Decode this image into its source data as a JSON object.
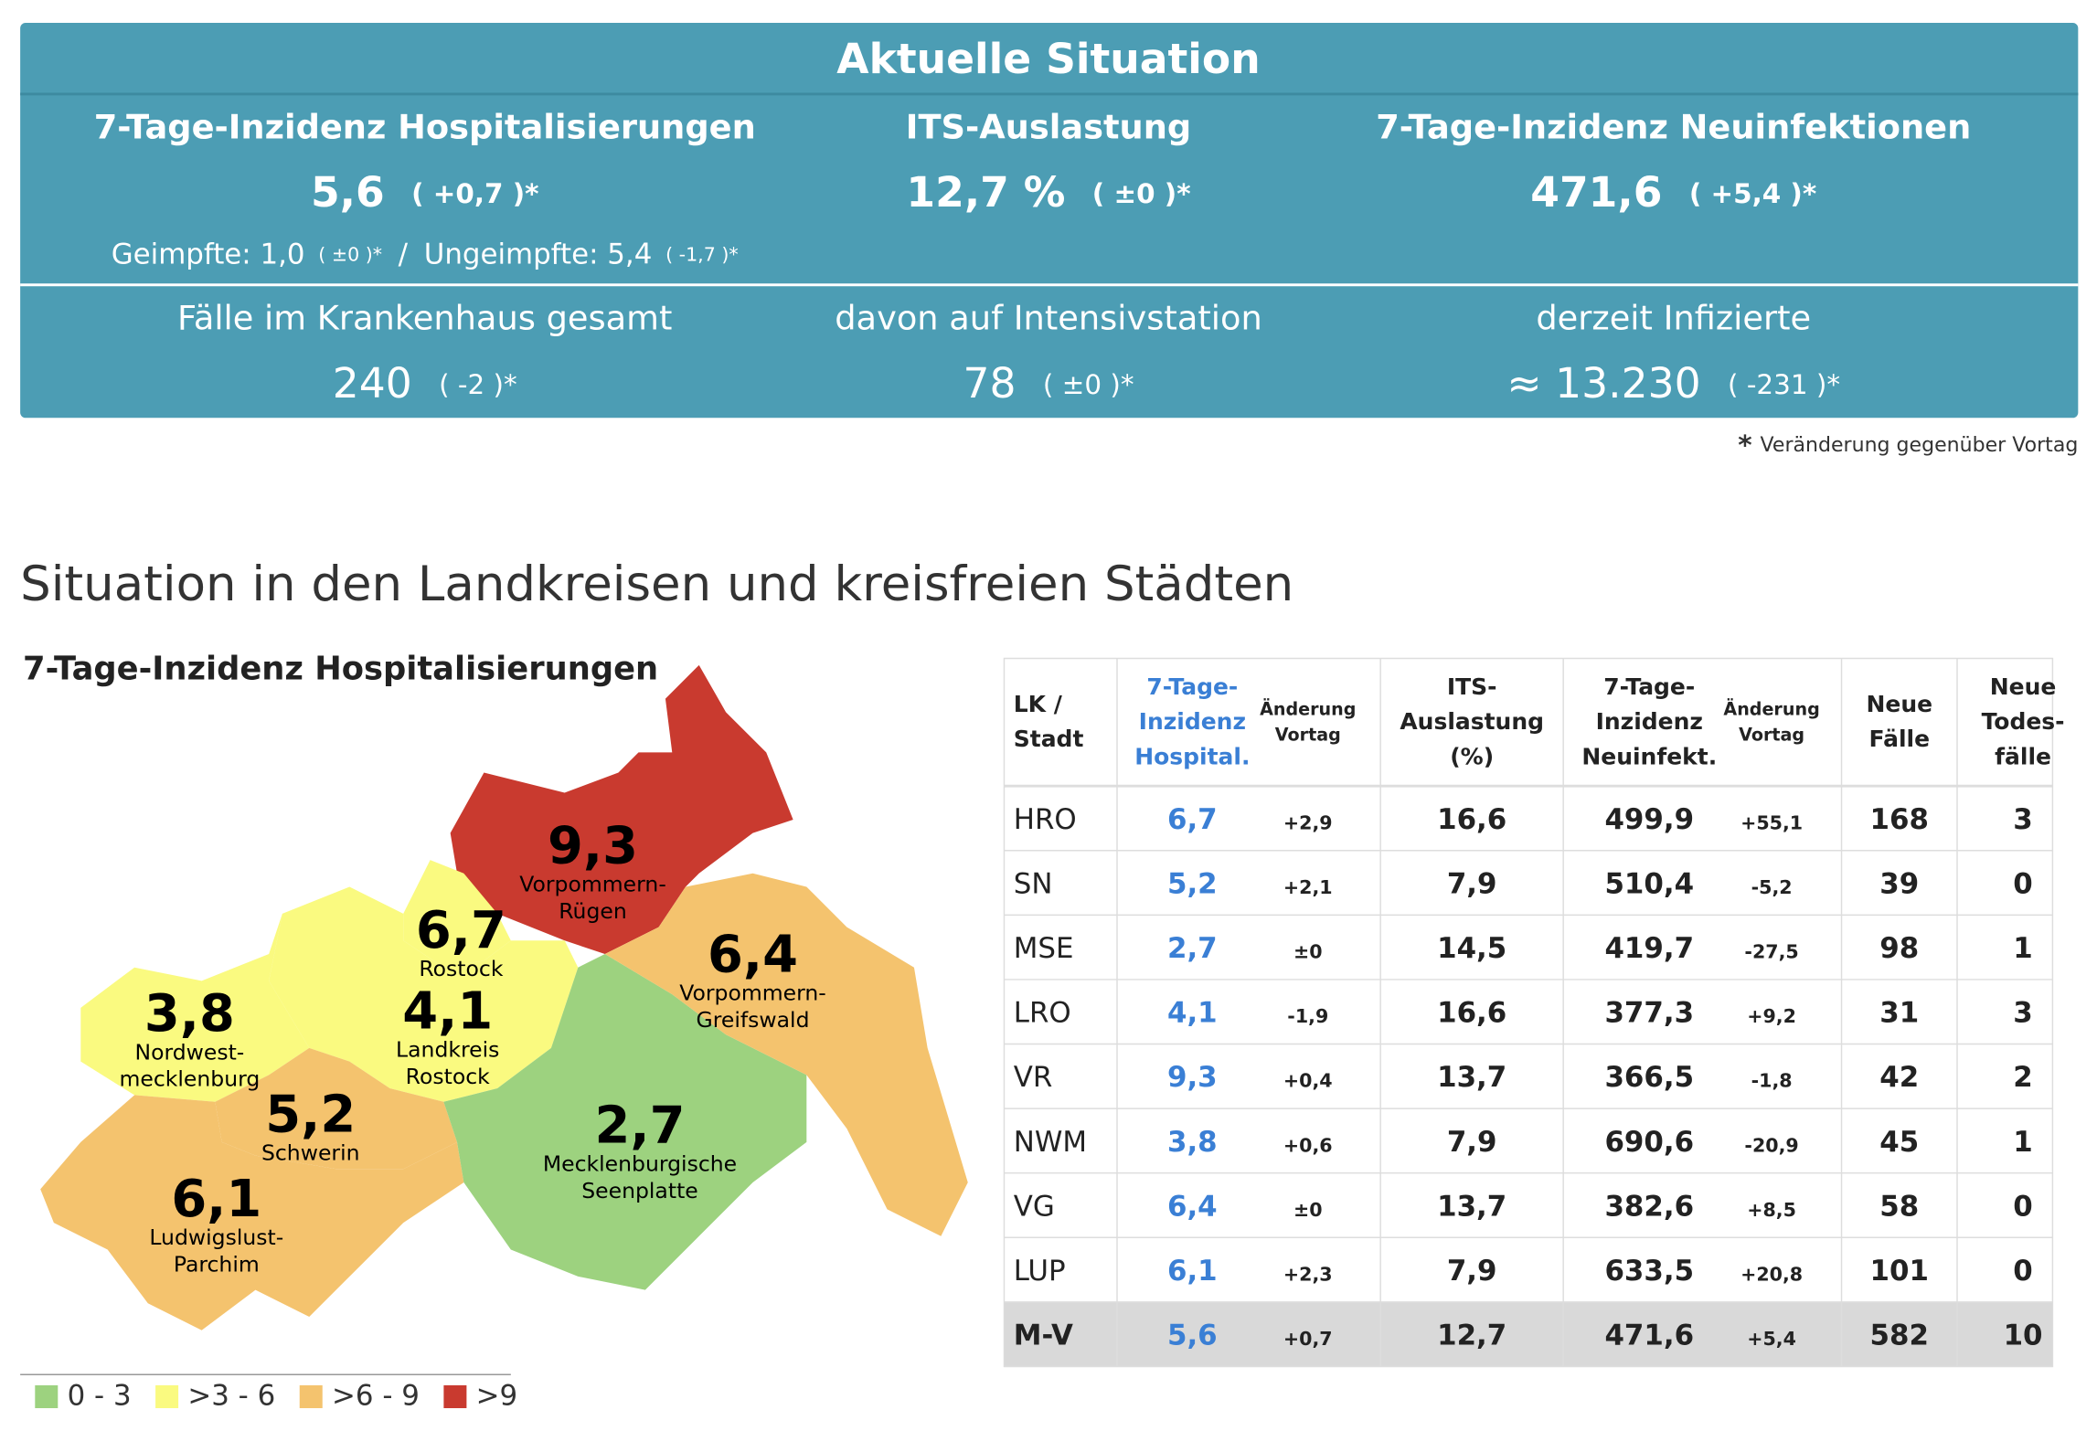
{
  "summary": {
    "title": "Aktuelle Situation",
    "kpis": [
      {
        "label": "7-Tage-Inzidenz Hospitalisierungen",
        "value": "5,6",
        "change": "( +0,7 )*"
      },
      {
        "label": "ITS-Auslastung",
        "value": "12,7 %",
        "change": "( ±0 )*"
      },
      {
        "label": "7-Tage-Inzidenz Neuinfektionen",
        "value": "471,6",
        "change": "( +5,4 )*"
      }
    ],
    "split": {
      "vaccinated": "Geimpfte: 1,0",
      "vaccinated_change": "( ±0 )*",
      "separator": "/",
      "unvaccinated": "Ungeimpfte: 5,4",
      "unvaccinated_change": "( -1,7 )*"
    },
    "counts": [
      {
        "label": "Fälle im Krankenhaus gesamt",
        "value": "240",
        "change": "( -2 )*"
      },
      {
        "label": "davon auf Intensivstation",
        "value": "78",
        "change": "( ±0 )*"
      },
      {
        "label": "derzeit Infizierte",
        "value": "≈ 13.230",
        "change": "( -231 )*"
      }
    ],
    "footnote_mark": "*",
    "footnote": "Veränderung gegenüber Vortag"
  },
  "section_title": "Situation in den Landkreisen und kreisfreien Städten",
  "map": {
    "title": "7-Tage-Inzidenz Hospitalisierungen",
    "regions": [
      {
        "value": "9,3",
        "name": [
          "Vorpommern-",
          "Rügen"
        ]
      },
      {
        "value": "6,7",
        "name": [
          "Rostock"
        ]
      },
      {
        "value": "4,1",
        "name": [
          "Landkreis",
          "Rostock"
        ]
      },
      {
        "value": "3,8",
        "name": [
          "Nordwest-",
          "mecklenburg"
        ]
      },
      {
        "value": "5,2",
        "name": [
          "Schwerin"
        ]
      },
      {
        "value": "6,1",
        "name": [
          "Ludwigslust-",
          "Parchim"
        ]
      },
      {
        "value": "2,7",
        "name": [
          "Mecklenburgische",
          "Seenplatte"
        ]
      },
      {
        "value": "6,4",
        "name": [
          "Vorpommern-",
          "Greifswald"
        ]
      }
    ],
    "legend": [
      {
        "label": "0 - 3",
        "color": "#9dd27f"
      },
      {
        "label": ">3 - 6",
        "color": "#fafa80"
      },
      {
        "label": ">6 - 9",
        "color": "#f4c36e"
      },
      {
        "label": ">9",
        "color": "#c93a2f"
      }
    ]
  },
  "table": {
    "headers": [
      [
        "LK /",
        "Stadt"
      ],
      [
        "7-Tage-",
        "Inzidenz",
        "Hospital."
      ],
      [
        "Änderung",
        "Vortag"
      ],
      [
        "ITS-",
        "Auslastung",
        "(%)"
      ],
      [
        "7-Tage-",
        "Inzidenz",
        "Neuinfekt."
      ],
      [
        "Änderung",
        "Vortag"
      ],
      [
        "Neue",
        "Fälle"
      ],
      [
        "Neue",
        "Todes-",
        "fälle"
      ]
    ],
    "rows": [
      [
        "HRO",
        "6,7",
        "+2,9",
        "16,6",
        "499,9",
        "+55,1",
        "168",
        "3"
      ],
      [
        "SN",
        "5,2",
        "+2,1",
        "7,9",
        "510,4",
        "-5,2",
        "39",
        "0"
      ],
      [
        "MSE",
        "2,7",
        "±0",
        "14,5",
        "419,7",
        "-27,5",
        "98",
        "1"
      ],
      [
        "LRO",
        "4,1",
        "-1,9",
        "16,6",
        "377,3",
        "+9,2",
        "31",
        "3"
      ],
      [
        "VR",
        "9,3",
        "+0,4",
        "13,7",
        "366,5",
        "-1,8",
        "42",
        "2"
      ],
      [
        "NWM",
        "3,8",
        "+0,6",
        "7,9",
        "690,6",
        "-20,9",
        "45",
        "1"
      ],
      [
        "VG",
        "6,4",
        "±0",
        "13,7",
        "382,6",
        "+8,5",
        "58",
        "0"
      ],
      [
        "LUP",
        "6,1",
        "+2,3",
        "7,9",
        "633,5",
        "+20,8",
        "101",
        "0"
      ],
      [
        "M-V",
        "5,6",
        "+0,7",
        "12,7",
        "471,6",
        "+5,4",
        "582",
        "10"
      ]
    ]
  }
}
